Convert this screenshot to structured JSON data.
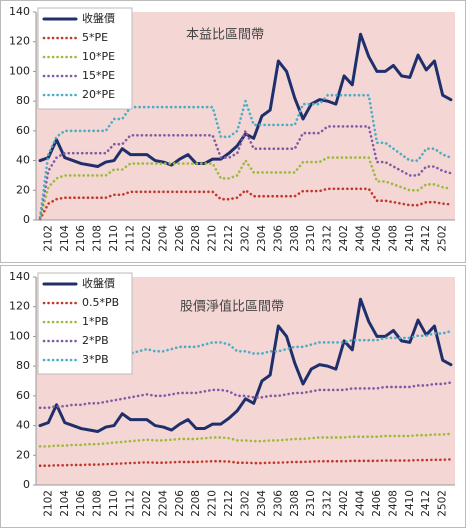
{
  "chart_data": [
    {
      "type": "line",
      "title": "本益比區間帶",
      "legend": "upper left",
      "background": "#f4d6d4",
      "categories": [
        null,
        "2102",
        null,
        "2104",
        null,
        "2106",
        null,
        "2108",
        null,
        "2110",
        null,
        "2112",
        null,
        "2202",
        null,
        "2204",
        null,
        "2206",
        null,
        "2208",
        null,
        "2210",
        null,
        "2212",
        null,
        "2302",
        null,
        "2304",
        null,
        "2306",
        null,
        "2308",
        null,
        "2310",
        null,
        "2312",
        null,
        "2402",
        null,
        "2404",
        null,
        "2406",
        null,
        "2408",
        null,
        "2410",
        null,
        "2412",
        null,
        "2502",
        null
      ],
      "ylim": [
        0,
        140
      ],
      "yticks": [
        0,
        20,
        40,
        60,
        80,
        100,
        120,
        140
      ],
      "series": [
        {
          "name": "收盤價",
          "color": "#1f2f6b",
          "style": "solid",
          "values": [
            40,
            42,
            54,
            42,
            40,
            38,
            37,
            36,
            39,
            40,
            48,
            44,
            44,
            44,
            40,
            39,
            37,
            41,
            44,
            38,
            38,
            41,
            41,
            45,
            50,
            58,
            55,
            70,
            74,
            107,
            100,
            82,
            68,
            78,
            81,
            80,
            78,
            97,
            91,
            125,
            110,
            100,
            100,
            104,
            97,
            96,
            111,
            101,
            107,
            84,
            81
          ]
        },
        {
          "name": "5*PE",
          "color": "#c0392b",
          "style": "dotted",
          "values": [
            0.5,
            11,
            14,
            15,
            15,
            15,
            15,
            15,
            15,
            17,
            17,
            19,
            19,
            19,
            19,
            19,
            19,
            19,
            19,
            19,
            19,
            19,
            14,
            14,
            15,
            20,
            16,
            16,
            16,
            16,
            16,
            16,
            19.5,
            19.5,
            19.5,
            21,
            21,
            21,
            21,
            21,
            21,
            13,
            13,
            12,
            11,
            10,
            10,
            12,
            12,
            11,
            10.5
          ]
        },
        {
          "name": "10*PE",
          "color": "#9bbb3b",
          "style": "dotted",
          "values": [
            1,
            22,
            28,
            30,
            30,
            30,
            30,
            30,
            30,
            34,
            34,
            38,
            38,
            38,
            38,
            38,
            38,
            38,
            38,
            38,
            38,
            38,
            28,
            28,
            30,
            40,
            32,
            32,
            32,
            32,
            32,
            32,
            39,
            39,
            39,
            42,
            42,
            42,
            42,
            42,
            42,
            26,
            26,
            24,
            22,
            20,
            20,
            24,
            24,
            22,
            21
          ]
        },
        {
          "name": "15*PE",
          "color": "#7f5ba6",
          "style": "dotted",
          "values": [
            1.5,
            33,
            42,
            45,
            45,
            45,
            45,
            45,
            45,
            51,
            51,
            57,
            57,
            57,
            57,
            57,
            57,
            57,
            57,
            57,
            57,
            57,
            42,
            42,
            45,
            60,
            48,
            48,
            48,
            48,
            48,
            48,
            58.5,
            58.5,
            58.5,
            63,
            63,
            63,
            63,
            63,
            63,
            39,
            39,
            36,
            33,
            30,
            30,
            36,
            36,
            33,
            31.5
          ]
        },
        {
          "name": "20*PE",
          "color": "#4bacc6",
          "style": "dotted",
          "values": [
            2,
            44,
            56,
            60,
            60,
            60,
            60,
            60,
            60,
            68,
            68,
            76,
            76,
            76,
            76,
            76,
            76,
            76,
            76,
            76,
            76,
            76,
            56,
            56,
            60,
            80,
            64,
            64,
            64,
            64,
            64,
            64,
            78,
            78,
            78,
            84,
            84,
            84,
            84,
            84,
            84,
            52,
            52,
            48,
            44,
            40,
            40,
            48,
            48,
            44,
            42
          ]
        }
      ]
    },
    {
      "type": "line",
      "title": "股價淨值比區間帶",
      "legend": "upper left",
      "background": "#f4d6d4",
      "categories": [
        null,
        "2102",
        null,
        "2104",
        null,
        "2106",
        null,
        "2108",
        null,
        "2110",
        null,
        "2112",
        null,
        "2202",
        null,
        "2204",
        null,
        "2206",
        null,
        "2208",
        null,
        "2210",
        null,
        "2212",
        null,
        "2302",
        null,
        "2304",
        null,
        "2306",
        null,
        "2308",
        null,
        "2310",
        null,
        "2312",
        null,
        "2402",
        null,
        "2404",
        null,
        "2406",
        null,
        "2408",
        null,
        "2410",
        null,
        "2412",
        null,
        "2502",
        null
      ],
      "ylim": [
        0,
        140
      ],
      "yticks": [
        0,
        20,
        40,
        60,
        80,
        100,
        120,
        140
      ],
      "series": [
        {
          "name": "收盤價",
          "color": "#1f2f6b",
          "style": "solid",
          "values": [
            40,
            42,
            54,
            42,
            40,
            38,
            37,
            36,
            39,
            40,
            48,
            44,
            44,
            44,
            40,
            39,
            37,
            41,
            44,
            38,
            38,
            41,
            41,
            45,
            50,
            58,
            55,
            70,
            74,
            107,
            100,
            82,
            68,
            78,
            81,
            80,
            78,
            97,
            91,
            125,
            110,
            100,
            100,
            104,
            97,
            96,
            111,
            101,
            107,
            84,
            81
          ]
        },
        {
          "name": "0.5*PB",
          "color": "#c0392b",
          "style": "dotted",
          "values": [
            13,
            13,
            13.25,
            13.25,
            13.5,
            13.5,
            13.75,
            13.75,
            14,
            14.25,
            14.5,
            14.75,
            15,
            15.25,
            15,
            15,
            15.25,
            15.5,
            15.5,
            15.5,
            15.75,
            16,
            16,
            15.75,
            15,
            15,
            14.75,
            14.75,
            15,
            15,
            15.25,
            15.5,
            15.5,
            15.75,
            16,
            16,
            16,
            16,
            16.25,
            16.25,
            16.25,
            16.25,
            16.5,
            16.5,
            16.5,
            16.5,
            16.75,
            16.75,
            17,
            17,
            17.25
          ]
        },
        {
          "name": "1*PB",
          "color": "#9bbb3b",
          "style": "dotted",
          "values": [
            26,
            26,
            26.5,
            26.5,
            27,
            27,
            27.5,
            27.5,
            28,
            28.5,
            29,
            29.5,
            30,
            30.5,
            30,
            30,
            30.5,
            31,
            31,
            31,
            31.5,
            32,
            32,
            31.5,
            30,
            30,
            29.5,
            29.5,
            30,
            30,
            30.5,
            31,
            31,
            31.5,
            32,
            32,
            32,
            32,
            32.5,
            32.5,
            32.5,
            32.5,
            33,
            33,
            33,
            33,
            33.5,
            33.5,
            34,
            34,
            34.5
          ]
        },
        {
          "name": "2*PB",
          "color": "#7f5ba6",
          "style": "dotted",
          "values": [
            52,
            52,
            53,
            53,
            54,
            54,
            55,
            55,
            56,
            57,
            58,
            59,
            60,
            61,
            60,
            60,
            61,
            62,
            62,
            62,
            63,
            64,
            64,
            63,
            60,
            60,
            59,
            59,
            60,
            60,
            61,
            62,
            62,
            63,
            64,
            64,
            64,
            64,
            65,
            65,
            65,
            65,
            66,
            66,
            66,
            66,
            67,
            67,
            68,
            68,
            69
          ]
        },
        {
          "name": "3*PB",
          "color": "#4bacc6",
          "style": "dotted",
          "values": [
            78,
            78,
            79.5,
            79.5,
            81,
            81,
            82.5,
            82.5,
            84,
            85.5,
            87,
            88.5,
            90,
            91.5,
            90,
            90,
            91.5,
            93,
            93,
            93,
            94.5,
            96,
            96,
            94.5,
            90,
            90,
            88.5,
            88.5,
            90,
            90,
            91.5,
            93,
            93,
            94.5,
            96,
            96,
            96,
            96,
            97.5,
            97.5,
            97.5,
            97.5,
            99,
            99,
            99,
            99,
            100.5,
            100.5,
            102,
            102,
            103.5
          ]
        }
      ]
    }
  ]
}
